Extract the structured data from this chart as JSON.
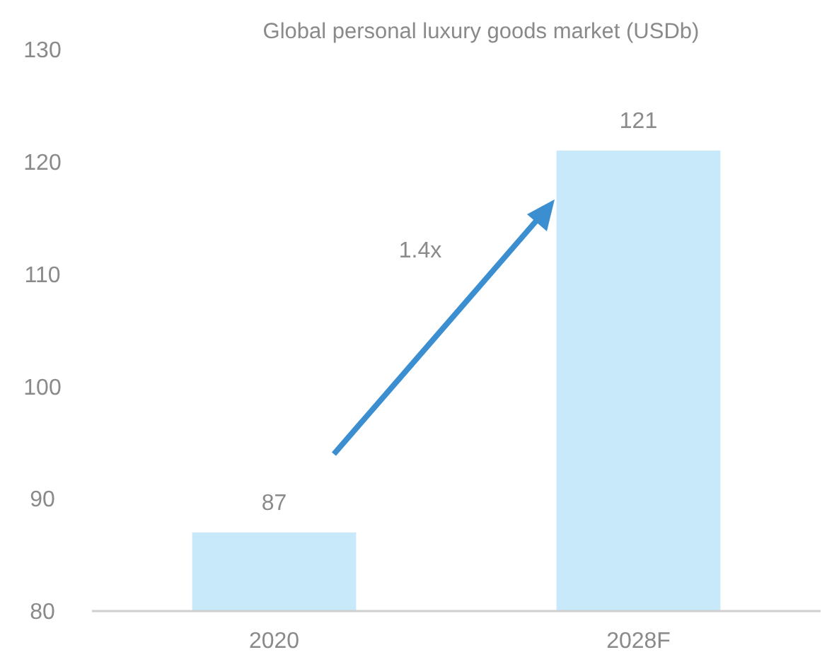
{
  "chart_data": {
    "type": "bar",
    "title": "Global personal luxury goods market (USDb)",
    "categories": [
      "2020",
      "2028F"
    ],
    "values": [
      87,
      121
    ],
    "color": "#c8e9f9",
    "ylim": [
      80,
      130
    ],
    "yticks": [
      80,
      90,
      100,
      110,
      120,
      130
    ],
    "data_labels": true,
    "grid": false,
    "annotations": [
      "1.4x"
    ]
  }
}
